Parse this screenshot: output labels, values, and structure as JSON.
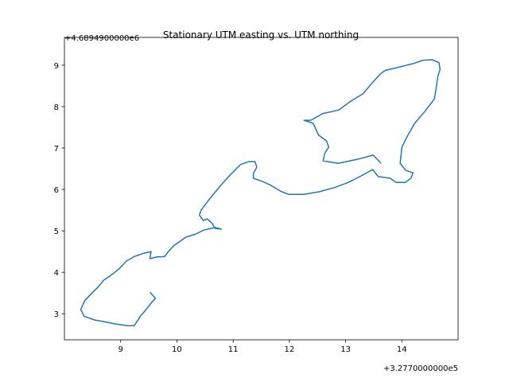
{
  "chart_data": {
    "type": "line",
    "title": "Stationary UTM easting vs. UTM northing",
    "x_offset_label": "+3.2770000000e5",
    "y_offset_label": "+4.6894900000e6",
    "color": "#1f77b4",
    "xlim": [
      8.0,
      15.0
    ],
    "xticks": [
      9,
      10,
      11,
      12,
      13,
      14
    ],
    "ylim": [
      2.37,
      9.67
    ],
    "yticks": [
      3,
      4,
      5,
      6,
      7,
      8,
      9
    ],
    "x": [
      9.52,
      9.62,
      9.55,
      9.44,
      9.35,
      9.3,
      9.24,
      9.13,
      8.92,
      8.7,
      8.53,
      8.35,
      8.29,
      8.36,
      8.49,
      8.59,
      8.7,
      8.82,
      8.97,
      9.1,
      9.24,
      9.41,
      9.54,
      9.52,
      9.64,
      9.78,
      9.86,
      9.95,
      10.06,
      10.16,
      10.33,
      10.48,
      10.61,
      10.69,
      10.79,
      10.68,
      10.62,
      10.54,
      10.47,
      10.4,
      10.43,
      10.58,
      10.78,
      10.92,
      11.13,
      11.27,
      11.39,
      11.42,
      11.36,
      11.36,
      11.53,
      11.67,
      11.84,
      11.99,
      12.25,
      12.52,
      12.79,
      13.05,
      13.28,
      13.48,
      13.58,
      13.79,
      13.9,
      14.06,
      14.16,
      14.2,
      14.07,
      13.97,
      14.0,
      14.1,
      14.23,
      14.4,
      14.52,
      14.58,
      14.62,
      14.64,
      14.68,
      14.66,
      14.54,
      14.38,
      14.21,
      13.97,
      13.7,
      13.62,
      13.49,
      13.31,
      13.08,
      12.88,
      12.76,
      12.59,
      12.46,
      12.38,
      12.26,
      12.42,
      12.52,
      12.66,
      12.7,
      12.63,
      12.6,
      12.87,
      13.22,
      13.49,
      13.63
    ],
    "values": [
      3.52,
      3.37,
      3.27,
      3.08,
      2.94,
      2.83,
      2.71,
      2.71,
      2.75,
      2.81,
      2.85,
      2.94,
      3.1,
      3.31,
      3.5,
      3.63,
      3.81,
      3.92,
      4.08,
      4.27,
      4.38,
      4.46,
      4.5,
      4.33,
      4.37,
      4.38,
      4.52,
      4.65,
      4.75,
      4.85,
      4.92,
      5.02,
      5.06,
      5.08,
      5.04,
      5.06,
      5.19,
      5.29,
      5.25,
      5.38,
      5.5,
      5.77,
      6.1,
      6.31,
      6.6,
      6.67,
      6.67,
      6.54,
      6.38,
      6.27,
      6.19,
      6.1,
      5.96,
      5.88,
      5.88,
      5.94,
      6.04,
      6.17,
      6.33,
      6.48,
      6.31,
      6.27,
      6.17,
      6.17,
      6.27,
      6.4,
      6.46,
      6.63,
      7.02,
      7.29,
      7.6,
      7.87,
      8.08,
      8.19,
      8.54,
      8.73,
      8.9,
      9.06,
      9.13,
      9.12,
      9.04,
      8.96,
      8.87,
      8.79,
      8.6,
      8.31,
      8.12,
      7.92,
      7.88,
      7.83,
      7.73,
      7.67,
      7.67,
      7.6,
      7.31,
      7.17,
      7.02,
      6.88,
      6.69,
      6.63,
      6.73,
      6.83,
      6.63
    ]
  }
}
